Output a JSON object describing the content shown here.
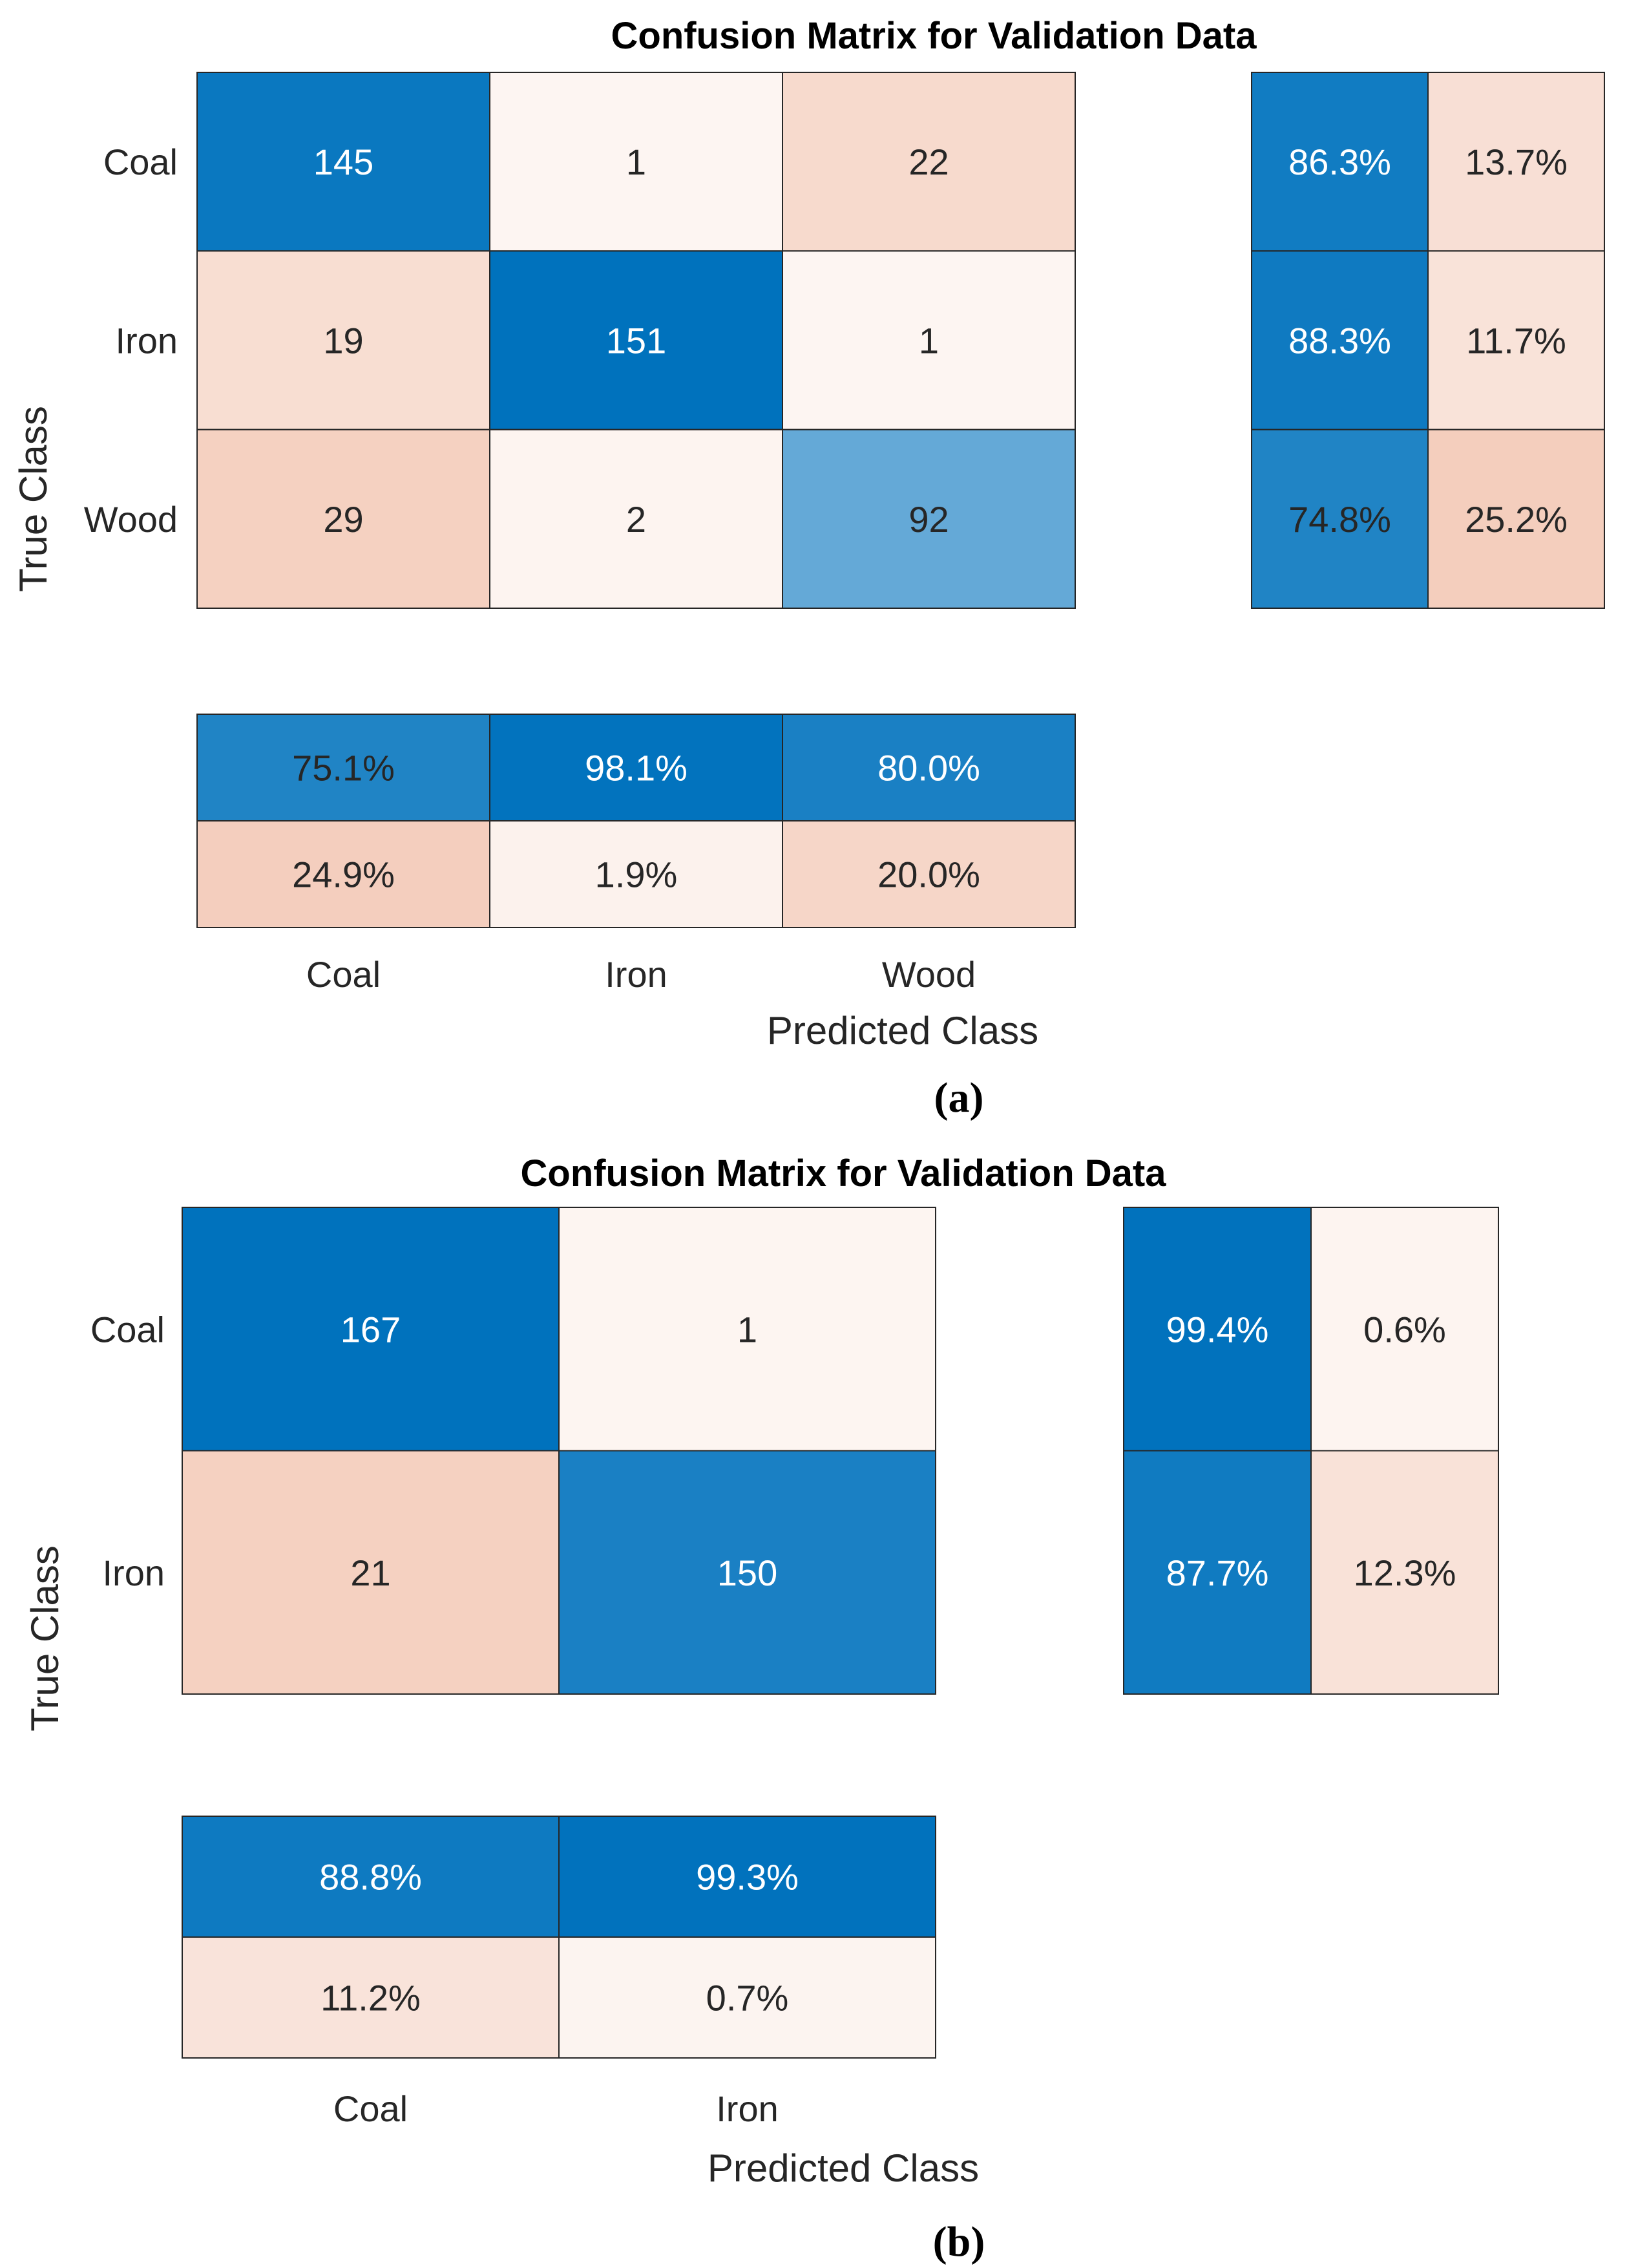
{
  "chart_data": [
    {
      "type": "heatmap",
      "title": "Confusion Matrix for Validation Data",
      "panel_label": "(a)",
      "xlabel": "Predicted Class",
      "ylabel": "True Class",
      "classes": [
        "Coal",
        "Iron",
        "Wood"
      ],
      "matrix": [
        [
          145,
          1,
          22
        ],
        [
          19,
          151,
          1
        ],
        [
          29,
          2,
          92
        ]
      ],
      "row_summary": [
        [
          "86.3%",
          "13.7%"
        ],
        [
          "88.3%",
          "11.7%"
        ],
        [
          "74.8%",
          "25.2%"
        ]
      ],
      "column_summary": [
        [
          "75.1%",
          "98.1%",
          "80.0%"
        ],
        [
          "24.9%",
          "1.9%",
          "20.0%"
        ]
      ]
    },
    {
      "type": "heatmap",
      "title": "Confusion Matrix for Validation Data",
      "panel_label": "(b)",
      "xlabel": "Predicted Class",
      "ylabel": "True Class",
      "classes": [
        "Coal",
        "Iron"
      ],
      "matrix": [
        [
          167,
          1
        ],
        [
          21,
          150
        ]
      ],
      "row_summary": [
        [
          "99.4%",
          "0.6%"
        ],
        [
          "87.7%",
          "12.3%"
        ]
      ],
      "column_summary": [
        [
          "88.8%",
          "99.3%"
        ],
        [
          "11.2%",
          "0.7%"
        ]
      ]
    }
  ]
}
